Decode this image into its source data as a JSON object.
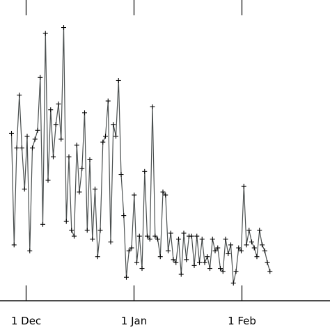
{
  "chart_data": {
    "type": "line",
    "x_start": "2013-11-27",
    "x_step_days": 0.75,
    "x_ticks": [
      {
        "label": "1 Dec",
        "date": "2013-12-01"
      },
      {
        "label": "1 Jan",
        "date": "2014-01-01"
      },
      {
        "label": "1 Feb",
        "date": "2014-02-01"
      }
    ],
    "y_ticks": [],
    "ylim": [
      0,
      1
    ],
    "grid": false,
    "legend": "none",
    "marker": "+",
    "colors": {
      "line": "#4a4f4f",
      "marker": "#000000",
      "frame": "#000000"
    },
    "values": [
      0.57,
      0.19,
      0.52,
      0.7,
      0.52,
      0.38,
      0.56,
      0.17,
      0.52,
      0.55,
      0.58,
      0.76,
      0.26,
      0.91,
      0.41,
      0.65,
      0.49,
      0.6,
      0.67,
      0.55,
      0.93,
      0.27,
      0.49,
      0.24,
      0.22,
      0.53,
      0.37,
      0.45,
      0.64,
      0.24,
      0.48,
      0.21,
      0.38,
      0.15,
      0.24,
      0.54,
      0.56,
      0.68,
      0.2,
      0.6,
      0.56,
      0.75,
      0.43,
      0.29,
      0.08,
      0.17,
      0.18,
      0.36,
      0.13,
      0.22,
      0.11,
      0.44,
      0.22,
      0.21,
      0.66,
      0.22,
      0.21,
      0.15,
      0.37,
      0.36,
      0.17,
      0.23,
      0.14,
      0.13,
      0.21,
      0.09,
      0.23,
      0.14,
      0.22,
      0.22,
      0.12,
      0.22,
      0.13,
      0.21,
      0.13,
      0.15,
      0.11,
      0.21,
      0.17,
      0.18,
      0.11,
      0.1,
      0.21,
      0.16,
      0.19,
      0.06,
      0.1,
      0.18,
      0.17,
      0.39,
      0.19,
      0.24,
      0.2,
      0.18,
      0.15,
      0.24,
      0.19,
      0.17,
      0.13,
      0.1
    ]
  }
}
